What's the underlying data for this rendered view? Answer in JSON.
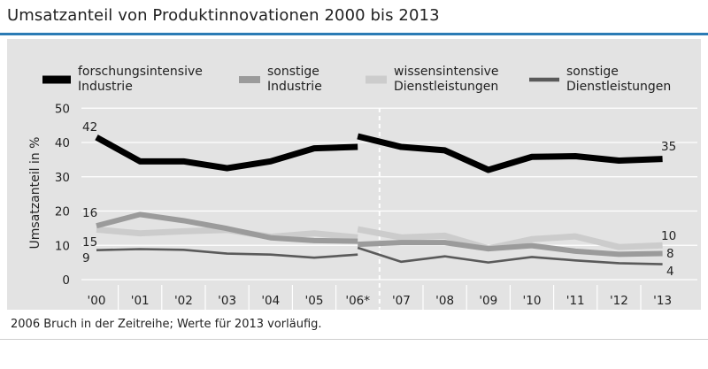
{
  "title": "Umsatzanteil von Produktinnovationen 2000 bis 2013",
  "footnote": "2006 Bruch in der Zeitreihe; Werte für 2013 vorläufig.",
  "colors": {
    "forschungsintensive": "#000000",
    "sonstige_industrie": "#9b9b9b",
    "wissensintensive": "#cccccc",
    "sonstige_dienst": "#5a5a5a",
    "panel": "#e3e3e3",
    "accent": "#2b7bb5"
  },
  "chart_data": {
    "type": "line",
    "ylabel": "Umsatzanteil in %",
    "ylim": [
      0,
      50
    ],
    "yticks": [
      "0",
      "10",
      "20",
      "30",
      "40",
      "50"
    ],
    "categories": [
      "'00",
      "'01",
      "'02",
      "'03",
      "'04",
      "'05",
      "'06*",
      "'07",
      "'08",
      "'09",
      "'10",
      "'11",
      "'12",
      "'13"
    ],
    "break_after_category": "'06*",
    "series": [
      {
        "key": "forschungsintensive",
        "legend_line1": "forschungsintensive",
        "legend_line2": "Industrie",
        "before_break": [
          41.5,
          34.5,
          34.5,
          32.5,
          34.5,
          38.3,
          38.7
        ],
        "after_break": [
          41.8,
          38.7,
          37.7,
          32.0,
          35.8,
          36.0,
          34.7,
          35.2
        ]
      },
      {
        "key": "sonstige_industrie",
        "legend_line1": "sonstige",
        "legend_line2": "Industrie",
        "before_break": [
          15.7,
          19.0,
          17.2,
          14.9,
          12.2,
          11.4,
          11.2
        ],
        "after_break": [
          10.3,
          10.8,
          10.8,
          9.0,
          9.9,
          8.3,
          7.4,
          7.6
        ]
      },
      {
        "key": "wissensintensive",
        "legend_line1": "wissensintensive",
        "legend_line2": "Dienstleistungen",
        "before_break": [
          14.6,
          13.5,
          14.1,
          14.5,
          12.5,
          13.5,
          12.3
        ],
        "after_break": [
          14.7,
          12.3,
          12.8,
          9.1,
          11.8,
          12.6,
          9.5,
          10.0
        ]
      },
      {
        "key": "sonstige_dienst",
        "legend_line1": "sonstige",
        "legend_line2": "Dienstleistungen",
        "before_break": [
          8.6,
          8.9,
          8.7,
          7.6,
          7.3,
          6.4,
          7.3
        ],
        "after_break": [
          9.3,
          5.2,
          6.8,
          5.0,
          6.6,
          5.6,
          4.8,
          4.5
        ]
      }
    ],
    "data_labels": [
      {
        "text": "42",
        "category": "'00",
        "value": 41.5
      },
      {
        "text": "16",
        "category": "'00",
        "value": 15.7
      },
      {
        "text": "15",
        "category": "'00",
        "value": 14.6
      },
      {
        "text": "9",
        "category": "'00",
        "value": 8.6
      },
      {
        "text": "35",
        "category": "'13",
        "value": 35.2
      },
      {
        "text": "10",
        "category": "'13",
        "value": 10.0
      },
      {
        "text": "8",
        "category": "'13",
        "value": 7.6
      },
      {
        "text": "4",
        "category": "'13",
        "value": 4.5
      }
    ]
  }
}
